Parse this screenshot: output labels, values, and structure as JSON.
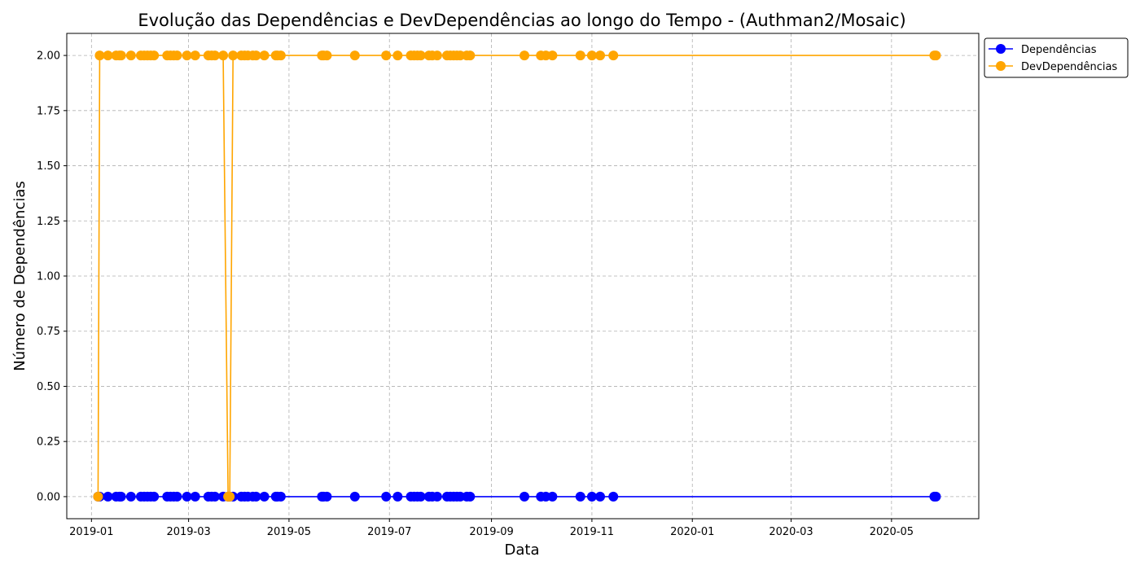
{
  "chart_data": {
    "type": "line",
    "title": "Evolução das Dependências e DevDependências ao longo do Tempo - (Authman2/Mosaic)",
    "xlabel": "Data",
    "ylabel": "Número de Dependências",
    "x_ticks": [
      "2019-01",
      "2019-03",
      "2019-05",
      "2019-07",
      "2019-09",
      "2019-11",
      "2020-01",
      "2020-03",
      "2020-05"
    ],
    "x_tick_dates": [
      "2019-01-01",
      "2019-03-01",
      "2019-05-01",
      "2019-07-01",
      "2019-09-01",
      "2019-11-01",
      "2020-01-01",
      "2020-03-01",
      "2020-05-01"
    ],
    "y_ticks": [
      "0.00",
      "0.25",
      "0.50",
      "0.75",
      "1.00",
      "1.25",
      "1.50",
      "1.75",
      "2.00"
    ],
    "y_tick_values": [
      0,
      0.25,
      0.5,
      0.75,
      1,
      1.25,
      1.5,
      1.75,
      2
    ],
    "xlim": [
      "2018-12-17",
      "2020-06-23"
    ],
    "ylim": [
      -0.1,
      2.1
    ],
    "grid": true,
    "legend_position": "outside-top-right",
    "x": [
      "2019-01-05",
      "2019-01-06",
      "2019-01-11",
      "2019-01-16",
      "2019-01-18",
      "2019-01-19",
      "2019-01-25",
      "2019-01-31",
      "2019-02-02",
      "2019-02-04",
      "2019-02-06",
      "2019-02-08",
      "2019-02-16",
      "2019-02-18",
      "2019-02-20",
      "2019-02-22",
      "2019-02-28",
      "2019-03-05",
      "2019-03-13",
      "2019-03-15",
      "2019-03-17",
      "2019-03-22",
      "2019-03-25",
      "2019-03-26",
      "2019-03-28",
      "2019-04-02",
      "2019-04-04",
      "2019-04-06",
      "2019-04-09",
      "2019-04-11",
      "2019-04-16",
      "2019-04-23",
      "2019-04-24",
      "2019-04-26",
      "2019-05-21",
      "2019-05-22",
      "2019-05-24",
      "2019-06-10",
      "2019-06-29",
      "2019-07-06",
      "2019-07-14",
      "2019-07-16",
      "2019-07-18",
      "2019-07-20",
      "2019-07-25",
      "2019-07-27",
      "2019-07-30",
      "2019-08-05",
      "2019-08-07",
      "2019-08-09",
      "2019-08-11",
      "2019-08-13",
      "2019-08-17",
      "2019-08-19",
      "2019-09-21",
      "2019-10-01",
      "2019-10-04",
      "2019-10-08",
      "2019-10-25",
      "2019-11-01",
      "2019-11-06",
      "2019-11-14",
      "2020-05-27",
      "2020-05-28"
    ],
    "series": [
      {
        "name": "Dependências",
        "color": "#0000ff",
        "values": [
          0,
          0,
          0,
          0,
          0,
          0,
          0,
          0,
          0,
          0,
          0,
          0,
          0,
          0,
          0,
          0,
          0,
          0,
          0,
          0,
          0,
          0,
          0,
          0,
          0,
          0,
          0,
          0,
          0,
          0,
          0,
          0,
          0,
          0,
          0,
          0,
          0,
          0,
          0,
          0,
          0,
          0,
          0,
          0,
          0,
          0,
          0,
          0,
          0,
          0,
          0,
          0,
          0,
          0,
          0,
          0,
          0,
          0,
          0,
          0,
          0,
          0,
          0,
          0
        ]
      },
      {
        "name": "DevDependências",
        "color": "#ffa500",
        "values": [
          0,
          2,
          2,
          2,
          2,
          2,
          2,
          2,
          2,
          2,
          2,
          2,
          2,
          2,
          2,
          2,
          2,
          2,
          2,
          2,
          2,
          2,
          0,
          0,
          2,
          2,
          2,
          2,
          2,
          2,
          2,
          2,
          2,
          2,
          2,
          2,
          2,
          2,
          2,
          2,
          2,
          2,
          2,
          2,
          2,
          2,
          2,
          2,
          2,
          2,
          2,
          2,
          2,
          2,
          2,
          2,
          2,
          2,
          2,
          2,
          2,
          2,
          2,
          2
        ]
      }
    ]
  }
}
